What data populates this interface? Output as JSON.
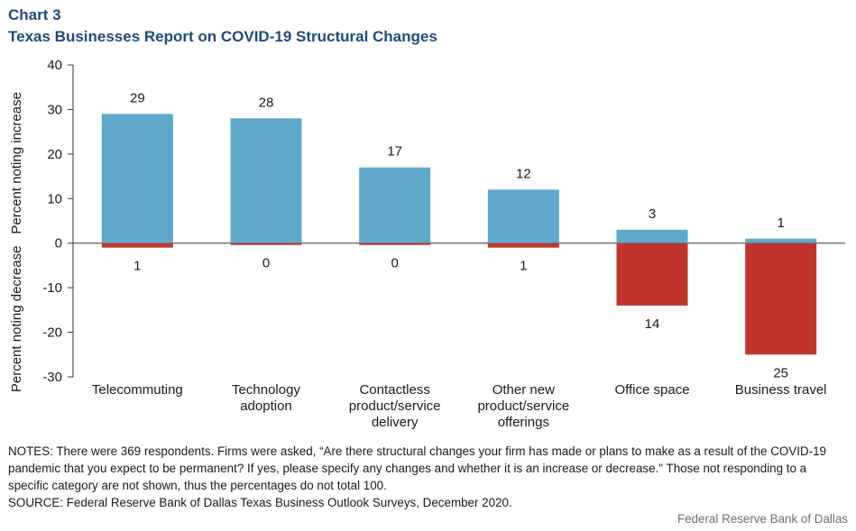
{
  "header": {
    "chart_label": "Chart 3",
    "title": "Texas Businesses Report on COVID-19 Structural Changes"
  },
  "chart_data": {
    "type": "bar",
    "title": "Texas Businesses Report on COVID-19 Structural Changes",
    "categories": [
      [
        "Telecommuting"
      ],
      [
        "Technology",
        "adoption"
      ],
      [
        "Contactless",
        "product/service",
        "delivery"
      ],
      [
        "Other new",
        "product/service",
        "offerings"
      ],
      [
        "Office space"
      ],
      [
        "Business travel"
      ]
    ],
    "series": [
      {
        "name": "Percent noting increase",
        "color": "#5ea9cb",
        "values": [
          29,
          28,
          17,
          12,
          3,
          1
        ],
        "labels": [
          "29",
          "28",
          "17",
          "12",
          "3",
          "1"
        ]
      },
      {
        "name": "Percent noting decrease",
        "color": "#c0352b",
        "values": [
          -1,
          0,
          0,
          -1,
          -14,
          -25
        ],
        "labels": [
          "1",
          "0",
          "0",
          "1",
          "14",
          "25"
        ]
      }
    ],
    "ylim": [
      -30,
      40
    ],
    "yticks": [
      40,
      30,
      20,
      10,
      0,
      -10,
      -20,
      -30
    ],
    "ylabel_top": "Percent noting increase",
    "ylabel_bottom": "Percent noting decrease",
    "grid": false
  },
  "notes": {
    "text": "NOTES: There were 369 respondents. Firms were asked, “Are there structural changes your firm has made or plans to make as a result of the COVID-19 pandemic that you expect to be permanent? If yes, please specify any changes and whether it is an increase or decrease.\" Those not responding to a specific category are not shown, thus the percentages do not total 100.",
    "source": "SOURCE: Federal Reserve Bank of Dallas Texas Business Outlook Surveys, December 2020."
  },
  "credit": "Federal Reserve Bank of Dallas"
}
